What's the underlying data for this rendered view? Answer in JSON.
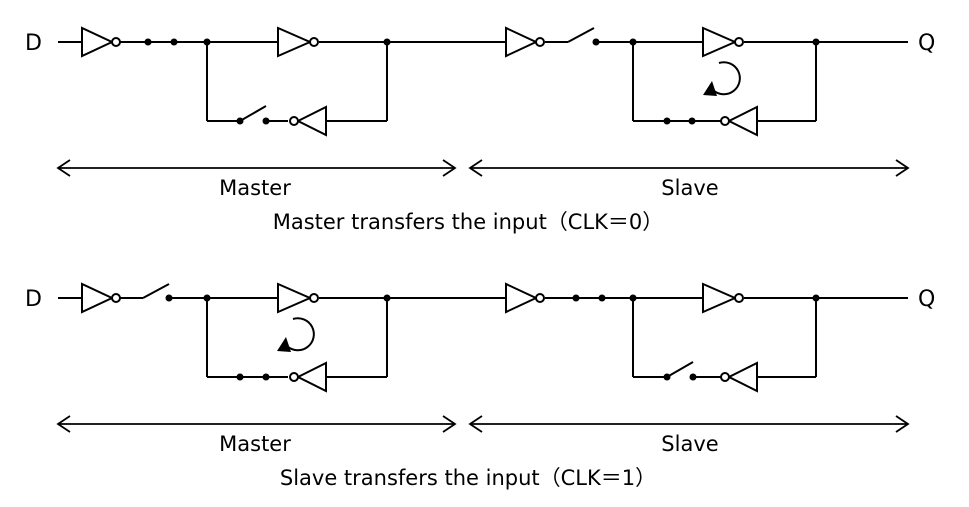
{
  "panels": [
    {
      "input_label": "D",
      "output_label": "Q",
      "master_label": "Master",
      "slave_label": "Slave",
      "caption": "Master transfers the input（CLK＝0）"
    },
    {
      "input_label": "D",
      "output_label": "Q",
      "master_label": "Master",
      "slave_label": "Slave",
      "caption": "Slave transfers the input（CLK＝1）"
    }
  ],
  "colors": {
    "ink": "#000000",
    "background": "#ffffff"
  }
}
